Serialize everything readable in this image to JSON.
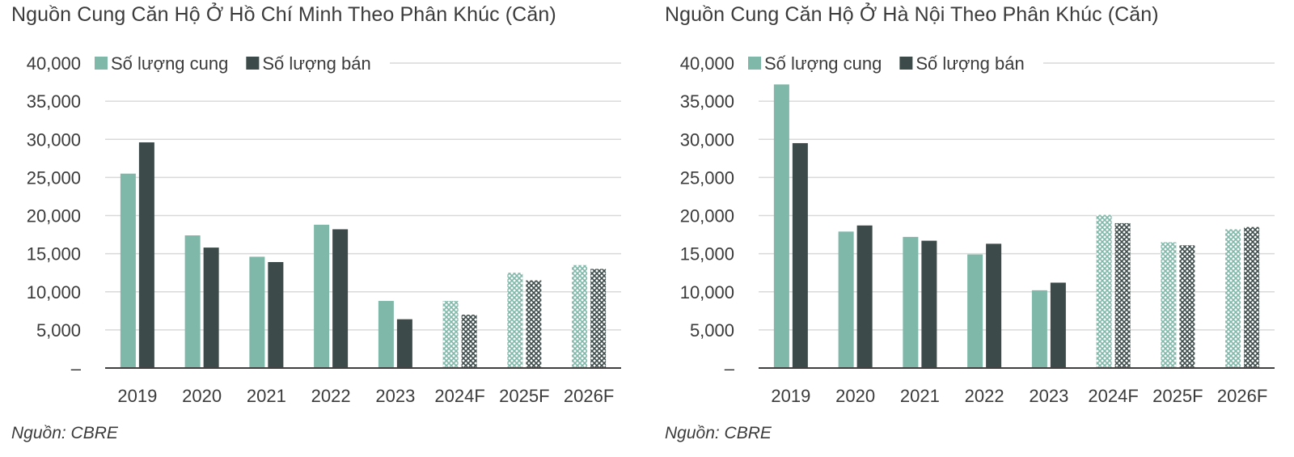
{
  "colors": {
    "supply": "#7fb8a8",
    "sold": "#3c4b49",
    "grid": "#d9d9d9",
    "axis": "#404040"
  },
  "chart_data": [
    {
      "type": "bar",
      "title": "Nguồn Cung Căn Hộ Ở Hồ Chí Minh Theo Phân Khúc (Căn)",
      "source": "Nguồn: CBRE",
      "categories": [
        "2019",
        "2020",
        "2021",
        "2022",
        "2023",
        "2024F",
        "2025F",
        "2026F"
      ],
      "forecast_from_index": 5,
      "series": [
        {
          "name": "Số lượng cung",
          "values": [
            25500,
            17400,
            14600,
            18800,
            8800,
            8800,
            12500,
            13500
          ]
        },
        {
          "name": "Số lượng bán",
          "values": [
            29600,
            15800,
            13900,
            18200,
            6400,
            7000,
            11500,
            13000
          ]
        }
      ],
      "ylim": [
        0,
        40000
      ],
      "yticks": [
        0,
        5000,
        10000,
        15000,
        20000,
        25000,
        30000,
        35000,
        40000
      ],
      "ytick_labels": [
        "–",
        "5,000",
        "10,000",
        "15,000",
        "20,000",
        "25,000",
        "30,000",
        "35,000",
        "40,000"
      ],
      "grid": true,
      "legend_position": "top-left"
    },
    {
      "type": "bar",
      "title": "Nguồn Cung Căn Hộ Ở Hà Nội Theo Phân Khúc (Căn)",
      "source": "Nguồn: CBRE",
      "categories": [
        "2019",
        "2020",
        "2021",
        "2022",
        "2023",
        "2024F",
        "2025F",
        "2026F"
      ],
      "forecast_from_index": 5,
      "series": [
        {
          "name": "Số lượng cung",
          "values": [
            37200,
            17900,
            17200,
            14900,
            10200,
            20100,
            16500,
            18200
          ]
        },
        {
          "name": "Số lượng bán",
          "values": [
            29500,
            18700,
            16700,
            16300,
            11200,
            19000,
            16100,
            18500
          ]
        }
      ],
      "ylim": [
        0,
        40000
      ],
      "yticks": [
        0,
        5000,
        10000,
        15000,
        20000,
        25000,
        30000,
        35000,
        40000
      ],
      "ytick_labels": [
        "–",
        "5,000",
        "10,000",
        "15,000",
        "20,000",
        "25,000",
        "30,000",
        "35,000",
        "40,000"
      ],
      "grid": true,
      "legend_position": "top-left"
    }
  ]
}
